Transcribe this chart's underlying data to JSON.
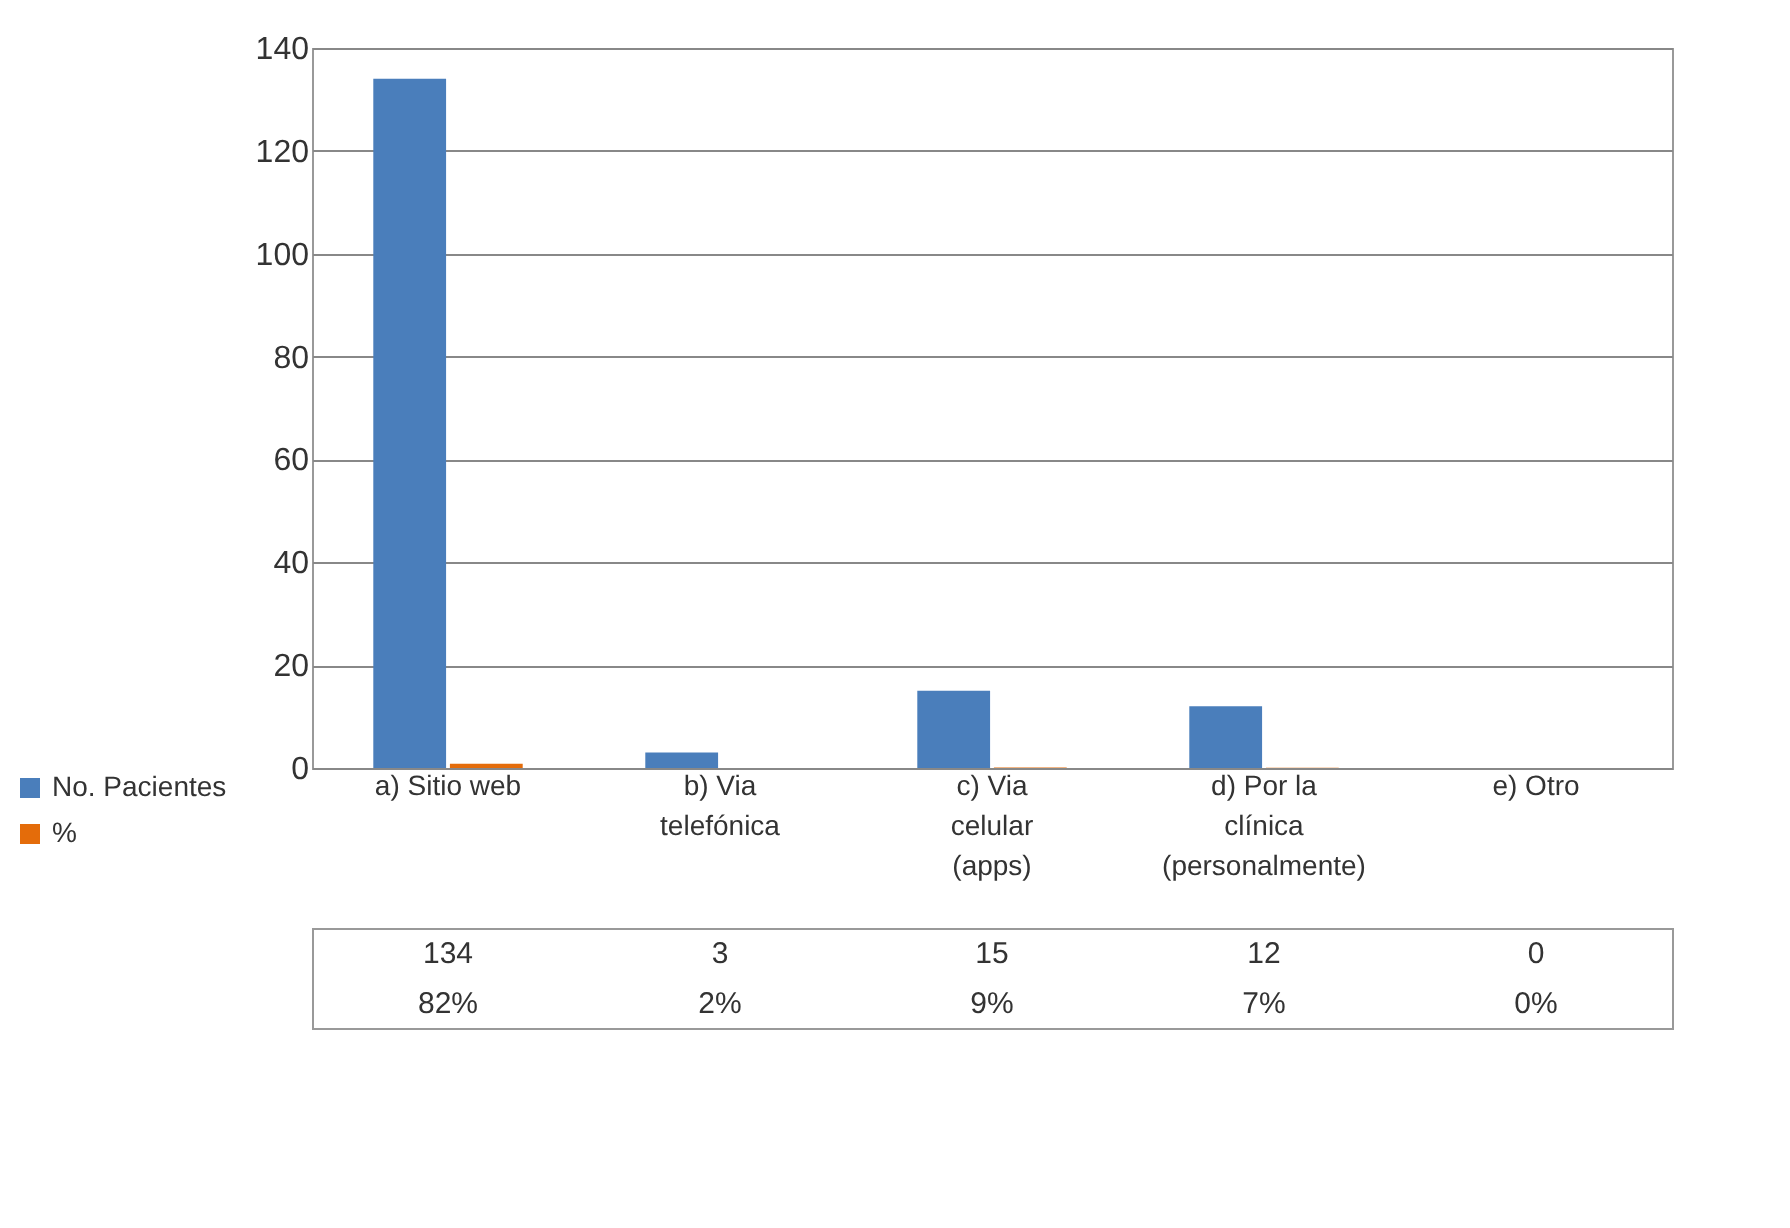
{
  "chart_data": {
    "type": "bar",
    "categories": [
      "a) Sitio web",
      "b) Via telefónica",
      "c) Via celular (apps)",
      "d) Por la clínica (personalmente)",
      "e) Otro"
    ],
    "series": [
      {
        "name": "No. Pacientes",
        "color": "#4a7ebb",
        "values": [
          134,
          3,
          15,
          12,
          0
        ],
        "value_labels": [
          "134",
          "3",
          "15",
          "12",
          "0"
        ]
      },
      {
        "name": "%",
        "color": "#e46c0a",
        "values": [
          0.82,
          0.02,
          0.09,
          0.07,
          0
        ],
        "value_labels": [
          "82%",
          "2%",
          "9%",
          "7%",
          "0%"
        ]
      }
    ],
    "ylim": [
      0,
      140
    ],
    "yticks": [
      0,
      20,
      40,
      60,
      80,
      100,
      120,
      140
    ],
    "grid": "y",
    "legend": "bottom left"
  }
}
